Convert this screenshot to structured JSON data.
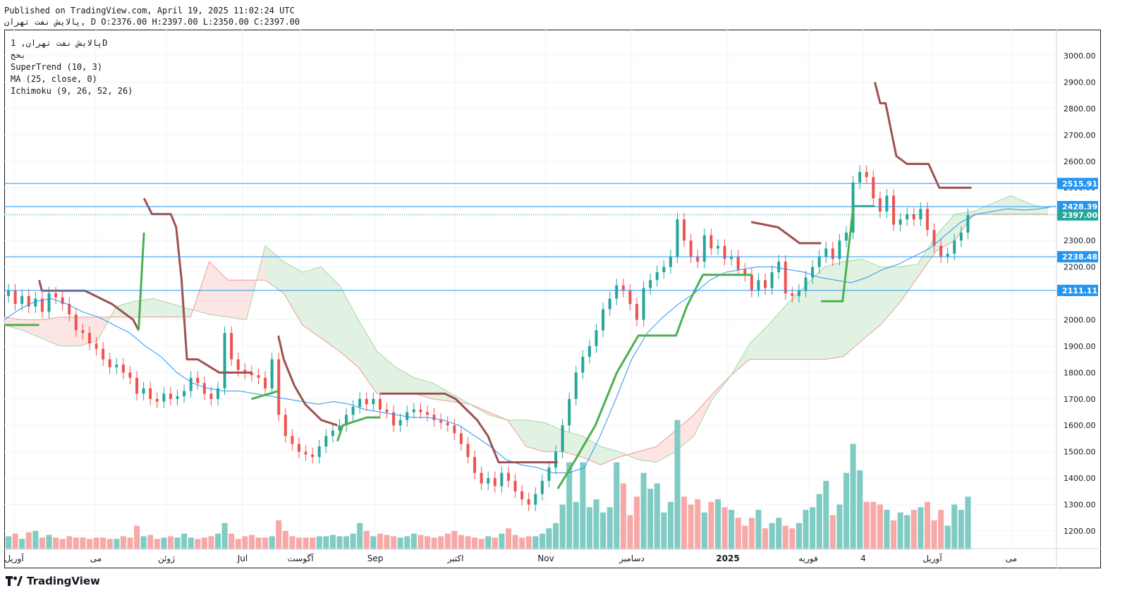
{
  "header": {
    "published": "Published on TradingView.com, April 19, 2025 11:02:24 UTC",
    "symbol_line": "پالایش نفت تهران, D O:2376.00 H:2397.00 L:2350.00 C:2397.00"
  },
  "legend": {
    "symbol": "پالایش نفت تهران, 1D",
    "sub": "بخج",
    "supertrend": "SuperTrend (10, 3)",
    "ma": "MA (25, close, 0)",
    "ichimoku": "Ichimoku (9, 26, 52, 26)"
  },
  "brand": {
    "name": "TradingView",
    "icon": "tradingview-logo-icon"
  },
  "colors": {
    "up": "#26a69a",
    "down": "#ef5350",
    "supertrend_up": "#4caf50",
    "supertrend_down": "#a05050",
    "ma": "#2196f3",
    "cloud_up": "#d8eed8",
    "cloud_down": "#fbdcd9",
    "hline": "#2196f3",
    "price_label": "#26a69a",
    "level_label": "#2196f3"
  },
  "chart_data": {
    "type": "candlestick",
    "title": "پالایش نفت تهران, 1D",
    "y_axis": {
      "ticks": [
        1200,
        1300,
        1400,
        1500,
        1600,
        1700,
        1800,
        1900,
        2000,
        2100,
        2200,
        2300,
        2400,
        2500,
        2600,
        2700,
        2800,
        2900,
        3000
      ],
      "ylim": [
        1130,
        3040
      ]
    },
    "x_axis": {
      "ticks": [
        "آوریل",
        "می",
        "ژوئن",
        "Jul",
        "آگوست",
        "Sep",
        "اکتبر",
        "Nov",
        "دسامبر",
        "2025",
        "فوریه",
        "4",
        "آوریل",
        "می"
      ]
    },
    "ohlc_last": {
      "open": 2376.0,
      "high": 2397.0,
      "low": 2350.0,
      "close": 2397.0
    },
    "levels": [
      {
        "value": 2515.91,
        "label": "2515.91"
      },
      {
        "value": 2428.39,
        "label": "2428.39"
      },
      {
        "value": 2238.48,
        "label": "2238.48"
      },
      {
        "value": 2111.11,
        "label": "2111.11"
      }
    ],
    "last_price": {
      "value": 2397.0,
      "label": "2397.00"
    },
    "close_series": [
      2110,
      2060,
      2090,
      2050,
      2080,
      2030,
      2100,
      2085,
      2060,
      2020,
      1960,
      1950,
      1910,
      1890,
      1850,
      1820,
      1830,
      1800,
      1780,
      1720,
      1740,
      1700,
      1690,
      1720,
      1700,
      1710,
      1730,
      1780,
      1760,
      1720,
      1700,
      1740,
      1950,
      1850,
      1810,
      1800,
      1790,
      1780,
      1740,
      1850,
      1640,
      1560,
      1530,
      1500,
      1490,
      1480,
      1520,
      1560,
      1580,
      1600,
      1640,
      1670,
      1700,
      1680,
      1700,
      1660,
      1650,
      1600,
      1620,
      1650,
      1660,
      1650,
      1640,
      1620,
      1610,
      1600,
      1570,
      1530,
      1480,
      1420,
      1380,
      1400,
      1370,
      1420,
      1390,
      1350,
      1320,
      1300,
      1340,
      1390,
      1440,
      1500,
      1600,
      1700,
      1800,
      1860,
      1900,
      1960,
      2040,
      2080,
      2130,
      2110,
      2060,
      2000,
      2120,
      2150,
      2180,
      2200,
      2240,
      2380,
      2300,
      2240,
      2220,
      2320,
      2270,
      2280,
      2230,
      2240,
      2190,
      2170,
      2110,
      2150,
      2120,
      2180,
      2220,
      2100,
      2090,
      2110,
      2160,
      2200,
      2240,
      2270,
      2230,
      2300,
      2330,
      2520,
      2560,
      2540,
      2460,
      2410,
      2470,
      2360,
      2380,
      2400,
      2380,
      2420,
      2340,
      2280,
      2240,
      2250,
      2300,
      2330,
      2397
    ],
    "volume_series": [
      1180,
      1190,
      1170,
      1195,
      1200,
      1175,
      1185,
      1175,
      1170,
      1180,
      1175,
      1175,
      1170,
      1175,
      1175,
      1170,
      1170,
      1180,
      1175,
      1220,
      1180,
      1185,
      1170,
      1175,
      1180,
      1175,
      1190,
      1175,
      1170,
      1175,
      1180,
      1190,
      1230,
      1190,
      1170,
      1180,
      1185,
      1175,
      1175,
      1180,
      1240,
      1200,
      1180,
      1175,
      1175,
      1175,
      1180,
      1180,
      1185,
      1180,
      1180,
      1190,
      1230,
      1200,
      1180,
      1190,
      1185,
      1180,
      1175,
      1180,
      1190,
      1185,
      1180,
      1175,
      1180,
      1190,
      1200,
      1185,
      1180,
      1175,
      1170,
      1180,
      1175,
      1190,
      1210,
      1185,
      1175,
      1180,
      1180,
      1190,
      1210,
      1230,
      1300,
      1460,
      1310,
      1460,
      1290,
      1320,
      1270,
      1290,
      1460,
      1380,
      1260,
      1330,
      1420,
      1360,
      1380,
      1270,
      1310,
      1620,
      1330,
      1300,
      1320,
      1270,
      1310,
      1320,
      1290,
      1280,
      1250,
      1220,
      1250,
      1280,
      1210,
      1230,
      1250,
      1220,
      1210,
      1230,
      1280,
      1290,
      1340,
      1390,
      1260,
      1300,
      1420,
      1530,
      1430,
      1310,
      1310,
      1300,
      1280,
      1240,
      1270,
      1260,
      1280,
      1290,
      1310,
      1240,
      1280,
      1220,
      1300,
      1280,
      1330
    ],
    "supertrend": {
      "segments": [
        {
          "trend": "up",
          "points": [
            [
              0,
              1980
            ],
            [
              13,
              1980
            ]
          ]
        },
        {
          "trend": "down",
          "points": [
            [
              13,
              2150
            ],
            [
              14,
              2110
            ],
            [
              20,
              2110
            ],
            [
              30,
              2110
            ],
            [
              40,
              2060
            ],
            [
              48,
              2000
            ],
            [
              50,
              1960
            ]
          ]
        },
        {
          "trend": "up",
          "points": [
            [
              50,
              1960
            ],
            [
              52,
              2330
            ]
          ]
        },
        {
          "trend": "down",
          "points": [
            [
              52,
              2460
            ],
            [
              55,
              2400
            ],
            [
              62,
              2400
            ],
            [
              64,
              2350
            ],
            [
              66,
              2150
            ],
            [
              68,
              1850
            ],
            [
              72,
              1850
            ],
            [
              80,
              1800
            ],
            [
              92,
              1800
            ]
          ]
        },
        {
          "trend": "up",
          "points": [
            [
              92,
              1700
            ],
            [
              102,
              1730
            ]
          ]
        },
        {
          "trend": "down",
          "points": [
            [
              102,
              1940
            ],
            [
              104,
              1850
            ],
            [
              108,
              1750
            ],
            [
              112,
              1680
            ],
            [
              118,
              1620
            ],
            [
              124,
              1600
            ]
          ]
        },
        {
          "trend": "up",
          "points": [
            [
              124,
              1540
            ],
            [
              126,
              1600
            ],
            [
              135,
              1630
            ],
            [
              140,
              1630
            ]
          ]
        },
        {
          "trend": "down",
          "points": [
            [
              140,
              1720
            ],
            [
              150,
              1720
            ],
            [
              164,
              1720
            ],
            [
              168,
              1700
            ],
            [
              172,
              1660
            ],
            [
              176,
              1620
            ],
            [
              180,
              1560
            ],
            [
              184,
              1460
            ],
            [
              200,
              1460
            ],
            [
              206,
              1460
            ]
          ]
        },
        {
          "trend": "up",
          "points": [
            [
              206,
              1360
            ],
            [
              212,
              1460
            ],
            [
              220,
              1600
            ],
            [
              228,
              1800
            ],
            [
              236,
              1940
            ],
            [
              250,
              1940
            ],
            [
              254,
              2050
            ],
            [
              260,
              2170
            ],
            [
              278,
              2170
            ]
          ]
        },
        {
          "trend": "down",
          "points": [
            [
              278,
              2370
            ],
            [
              288,
              2350
            ],
            [
              296,
              2290
            ],
            [
              304,
              2290
            ]
          ]
        },
        {
          "trend": "up",
          "points": [
            [
              304,
              2070
            ],
            [
              312,
              2070
            ],
            [
              316,
              2430
            ],
            [
              324,
              2430
            ]
          ]
        },
        {
          "trend": "down",
          "points": [
            [
              324,
              2900
            ],
            [
              326,
              2820
            ],
            [
              328,
              2820
            ],
            [
              332,
              2620
            ],
            [
              336,
              2590
            ],
            [
              344,
              2590
            ],
            [
              348,
              2500
            ],
            [
              356,
              2500
            ],
            [
              360,
              2500
            ]
          ]
        }
      ]
    },
    "moving_average": [
      2000,
      2040,
      2070,
      2080,
      2060,
      2030,
      2010,
      1980,
      1950,
      1900,
      1860,
      1800,
      1760,
      1740,
      1730,
      1730,
      1720,
      1710,
      1700,
      1690,
      1680,
      1690,
      1680,
      1660,
      1650,
      1640,
      1630,
      1630,
      1620,
      1600,
      1560,
      1520,
      1470,
      1450,
      1440,
      1420,
      1420,
      1440,
      1560,
      1700,
      1850,
      1950,
      2010,
      2060,
      2100,
      2150,
      2180,
      2190,
      2200,
      2200,
      2190,
      2180,
      2160,
      2150,
      2140,
      2160,
      2190,
      2210,
      2240,
      2270,
      2320,
      2370,
      2400,
      2410,
      2420,
      2415,
      2420,
      2430
    ],
    "ichimoku": {
      "span_a": [
        1980,
        1960,
        1930,
        1900,
        1900,
        1920,
        2050,
        2070,
        2080,
        2060,
        2040,
        2020,
        2010,
        2000,
        2280,
        2220,
        2180,
        2200,
        2130,
        2000,
        1880,
        1820,
        1780,
        1760,
        1720,
        1680,
        1640,
        1620,
        1620,
        1610,
        1580,
        1560,
        1520,
        1500,
        1470,
        1460,
        1500,
        1560,
        1700,
        1790,
        1910,
        1980,
        2060,
        2130,
        2200,
        2220,
        2230,
        2200,
        2200,
        2210,
        2320,
        2400,
        2410,
        2440,
        2470,
        2440,
        2420
      ],
      "span_b": [
        2010,
        2000,
        2000,
        2010,
        2010,
        2010,
        2010,
        2010,
        2010,
        2010,
        2010,
        2220,
        2150,
        2150,
        2150,
        2100,
        1980,
        1930,
        1880,
        1820,
        1720,
        1720,
        1720,
        1700,
        1690,
        1680,
        1650,
        1620,
        1520,
        1500,
        1500,
        1480,
        1450,
        1480,
        1500,
        1520,
        1580,
        1640,
        1720,
        1790,
        1850,
        1850,
        1850,
        1850,
        1850,
        1860,
        1920,
        1980,
        2060,
        2160,
        2260,
        2300,
        2400,
        2400,
        2400,
        2400,
        2400
      ]
    }
  }
}
